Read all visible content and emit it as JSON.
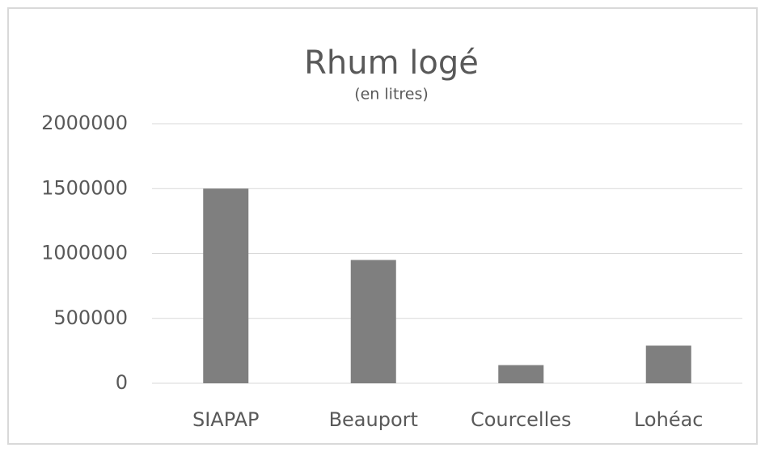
{
  "chart_data": {
    "type": "bar",
    "title": "Rhum logé",
    "subtitle": "(en litres)",
    "categories": [
      "SIAPAP",
      "Beauport",
      "Courcelles",
      "Lohéac"
    ],
    "values": [
      1500000,
      950000,
      140000,
      290000
    ],
    "color": "#7f7f7f",
    "ylim": [
      0,
      2000000
    ],
    "yticks": [
      0,
      500000,
      1000000,
      1500000,
      2000000
    ],
    "grid": true
  }
}
